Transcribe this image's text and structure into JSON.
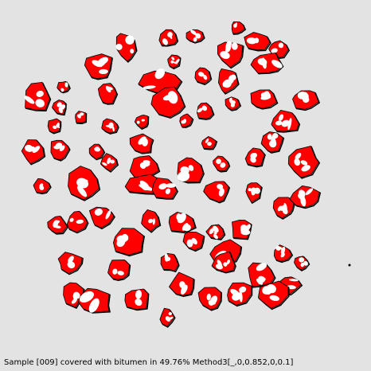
{
  "status": {
    "text": "Sample [009] covered with bitumen in 49.76% Method3[_,0,0.852,0,0.1]",
    "coverage_percent": 49.76
  },
  "colors": {
    "background": "#e3e3e3",
    "bitumen": "#ff0000",
    "aggregate": "#ffffff",
    "outline": "#000000"
  }
}
